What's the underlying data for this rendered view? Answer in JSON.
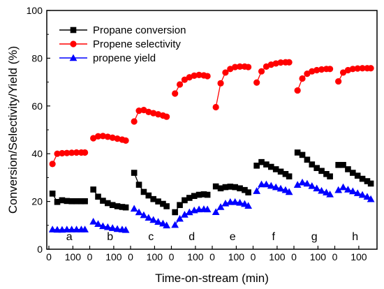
{
  "chart_data": {
    "type": "line",
    "xlabel": "Time-on-stream (min)",
    "ylabel": "Conversion/Selectivity/Yield (%)",
    "ylim": [
      0,
      100
    ],
    "yticks": [
      0,
      20,
      40,
      60,
      80,
      100
    ],
    "panel_xticks": [
      "0",
      "100"
    ],
    "panel_range": [
      0,
      170
    ],
    "legend_position": "top-left",
    "series": [
      {
        "key": "conversion",
        "name": "Propane conversion",
        "color": "#000000",
        "marker": "square"
      },
      {
        "key": "selectivity",
        "name": "Propene selectivity",
        "color": "#ff0000",
        "marker": "circle"
      },
      {
        "key": "yield",
        "name": "propene yield",
        "color": "#0000ff",
        "marker": "triangle"
      }
    ],
    "panels": [
      {
        "label": "a",
        "x": [
          15,
          35,
          55,
          75,
          95,
          115,
          135,
          150
        ],
        "conversion": [
          23.3,
          19.8,
          20.5,
          20.2,
          20.1,
          20.1,
          20.1,
          20.1
        ],
        "selectivity": [
          35.7,
          40.0,
          40.2,
          40.3,
          40.4,
          40.5,
          40.5,
          40.5
        ],
        "yield": [
          8.3,
          8.2,
          8.2,
          8.3,
          8.3,
          8.3,
          8.3,
          8.3
        ]
      },
      {
        "label": "b",
        "x": [
          15,
          35,
          55,
          75,
          95,
          115,
          135,
          150
        ],
        "conversion": [
          25.0,
          22.0,
          20.3,
          19.3,
          18.5,
          18.0,
          17.7,
          17.5
        ],
        "selectivity": [
          46.5,
          47.3,
          47.4,
          47.1,
          46.7,
          46.3,
          45.9,
          45.5
        ],
        "yield": [
          11.6,
          10.6,
          9.7,
          9.3,
          8.9,
          8.5,
          8.3,
          8.1
        ]
      },
      {
        "label": "c",
        "x": [
          15,
          35,
          55,
          75,
          95,
          115,
          135,
          150
        ],
        "conversion": [
          32.0,
          27.0,
          24.0,
          22.5,
          21.0,
          20.0,
          19.0,
          18.0
        ],
        "selectivity": [
          53.5,
          58.0,
          58.3,
          57.5,
          57.0,
          56.5,
          56.0,
          55.5
        ],
        "yield": [
          17.0,
          15.5,
          14.3,
          13.2,
          12.3,
          11.5,
          10.8,
          10.0
        ]
      },
      {
        "label": "d",
        "x": [
          15,
          35,
          55,
          75,
          95,
          115,
          135,
          150
        ],
        "conversion": [
          15.5,
          18.5,
          20.5,
          21.5,
          22.3,
          22.8,
          23.0,
          22.8
        ],
        "selectivity": [
          65.2,
          69.0,
          71.0,
          72.0,
          72.7,
          73.0,
          72.8,
          72.5
        ],
        "yield": [
          10.2,
          12.8,
          14.5,
          15.5,
          16.3,
          16.7,
          16.8,
          16.7
        ]
      },
      {
        "label": "e",
        "x": [
          15,
          35,
          55,
          75,
          95,
          115,
          135,
          150
        ],
        "conversion": [
          26.3,
          25.5,
          26.0,
          26.2,
          26.0,
          25.5,
          24.8,
          23.8
        ],
        "selectivity": [
          59.5,
          69.5,
          74.0,
          75.5,
          76.3,
          76.5,
          76.5,
          76.3
        ],
        "yield": [
          15.6,
          17.7,
          19.2,
          19.8,
          19.8,
          19.5,
          19.0,
          18.2
        ]
      },
      {
        "label": "f",
        "x": [
          15,
          35,
          55,
          75,
          95,
          115,
          135,
          150
        ],
        "conversion": [
          35.0,
          36.5,
          35.5,
          34.5,
          33.5,
          32.5,
          31.5,
          30.5
        ],
        "selectivity": [
          69.8,
          74.5,
          76.5,
          77.3,
          77.8,
          78.2,
          78.3,
          78.3
        ],
        "yield": [
          24.4,
          27.2,
          27.2,
          26.6,
          26.0,
          25.4,
          24.8,
          24.0
        ]
      },
      {
        "label": "g",
        "x": [
          15,
          35,
          55,
          75,
          95,
          115,
          135,
          150
        ],
        "conversion": [
          40.5,
          39.5,
          37.5,
          35.5,
          34.0,
          32.8,
          31.5,
          30.5
        ],
        "selectivity": [
          66.5,
          71.5,
          73.5,
          74.5,
          75.0,
          75.3,
          75.5,
          75.5
        ],
        "yield": [
          27.0,
          28.0,
          27.5,
          26.5,
          25.5,
          24.5,
          23.8,
          23.0
        ]
      },
      {
        "label": "h",
        "x": [
          15,
          35,
          55,
          75,
          95,
          115,
          135,
          150
        ],
        "conversion": [
          35.3,
          35.3,
          33.5,
          32.0,
          30.8,
          29.5,
          28.5,
          27.5
        ],
        "selectivity": [
          70.3,
          74.0,
          75.0,
          75.5,
          75.7,
          75.8,
          75.8,
          75.8
        ],
        "yield": [
          24.8,
          26.0,
          25.0,
          24.3,
          23.5,
          22.8,
          22.0,
          21.0
        ]
      }
    ]
  }
}
